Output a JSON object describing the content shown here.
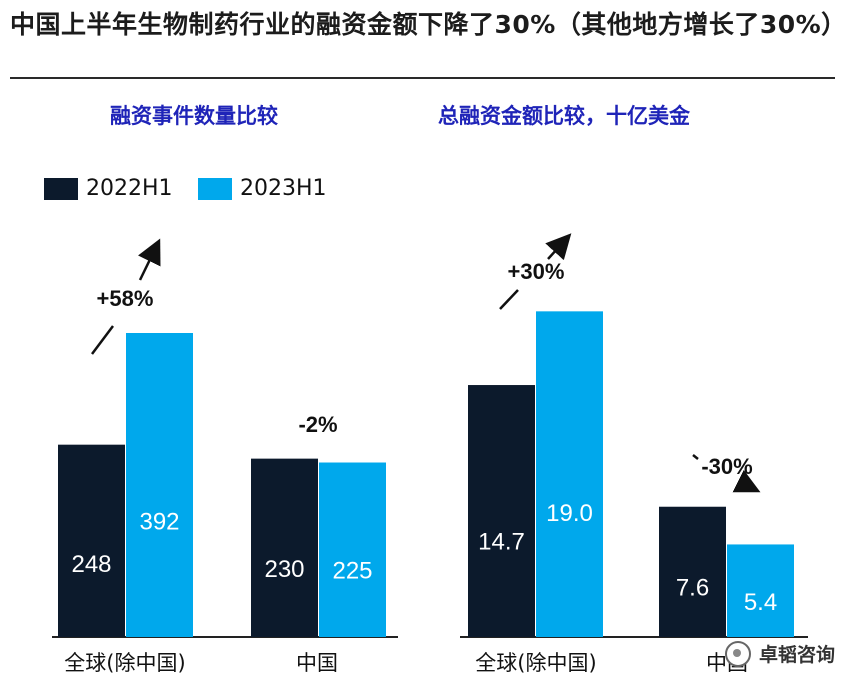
{
  "title": "中国上半年生物制药行业的融资金额下降了30%（其他地方增长了30%）",
  "watermark": "卓韬咨询",
  "legend": [
    {
      "name": "2022H1",
      "color": "#0c1a2c"
    },
    {
      "name": "2023H1",
      "color": "#00a8ec"
    }
  ],
  "chart_data": [
    {
      "type": "bar",
      "title": "融资事件数量比较",
      "categories": [
        "全球(除中国)",
        "中国"
      ],
      "series": [
        {
          "name": "2022H1",
          "values": [
            248,
            230
          ]
        },
        {
          "name": "2023H1",
          "values": [
            392,
            225
          ]
        }
      ],
      "labels": [
        [
          "248",
          "392"
        ],
        [
          "230",
          "225"
        ]
      ],
      "changes": [
        "+58%",
        "-2%"
      ],
      "ylim": [
        0,
        500
      ]
    },
    {
      "type": "bar",
      "title": "总融资金额比较，十亿美金",
      "categories": [
        "全球(除中国)",
        "中国"
      ],
      "series": [
        {
          "name": "2022H1",
          "values": [
            14.7,
            7.6
          ]
        },
        {
          "name": "2023H1",
          "values": [
            19.0,
            5.4
          ]
        }
      ],
      "labels": [
        [
          "14.7",
          "19.0"
        ],
        [
          "7.6",
          "5.4"
        ]
      ],
      "changes": [
        "+30%",
        "-30%"
      ],
      "ylim": [
        0,
        25.4
      ]
    }
  ]
}
